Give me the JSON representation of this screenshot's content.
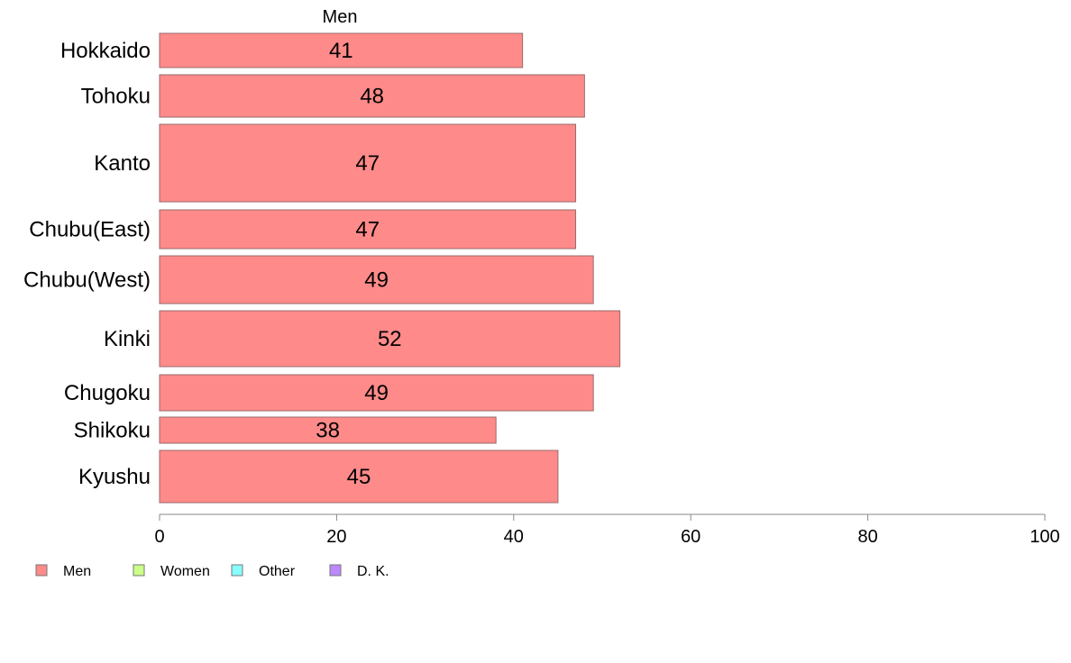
{
  "chart_data": {
    "type": "bar",
    "orientation": "horizontal",
    "title": "Men",
    "categories": [
      "Hokkaido",
      "Tohoku",
      "Kanto",
      "Chubu(East)",
      "Chubu(West)",
      "Kinki",
      "Chugoku",
      "Shikoku",
      "Kyushu"
    ],
    "series": [
      {
        "name": "Men",
        "values": [
          41,
          48,
          47,
          47,
          49,
          52,
          49,
          38,
          45
        ],
        "color": "#ff8a8a"
      }
    ],
    "data_labels": [
      "41",
      "48",
      "47",
      "47",
      "49",
      "52",
      "49",
      "38",
      "45"
    ],
    "xlim": [
      0,
      100
    ],
    "xticks": [
      0,
      20,
      40,
      60,
      80,
      100
    ],
    "grid": false,
    "legend": {
      "placement": "bottom-left",
      "entries": [
        {
          "label": "Men",
          "color": "#ff8a8a"
        },
        {
          "label": "Women",
          "color": "#ccff88"
        },
        {
          "label": "Other",
          "color": "#88ffff"
        },
        {
          "label": "D. K.",
          "color": "#bb88ff"
        }
      ]
    }
  }
}
